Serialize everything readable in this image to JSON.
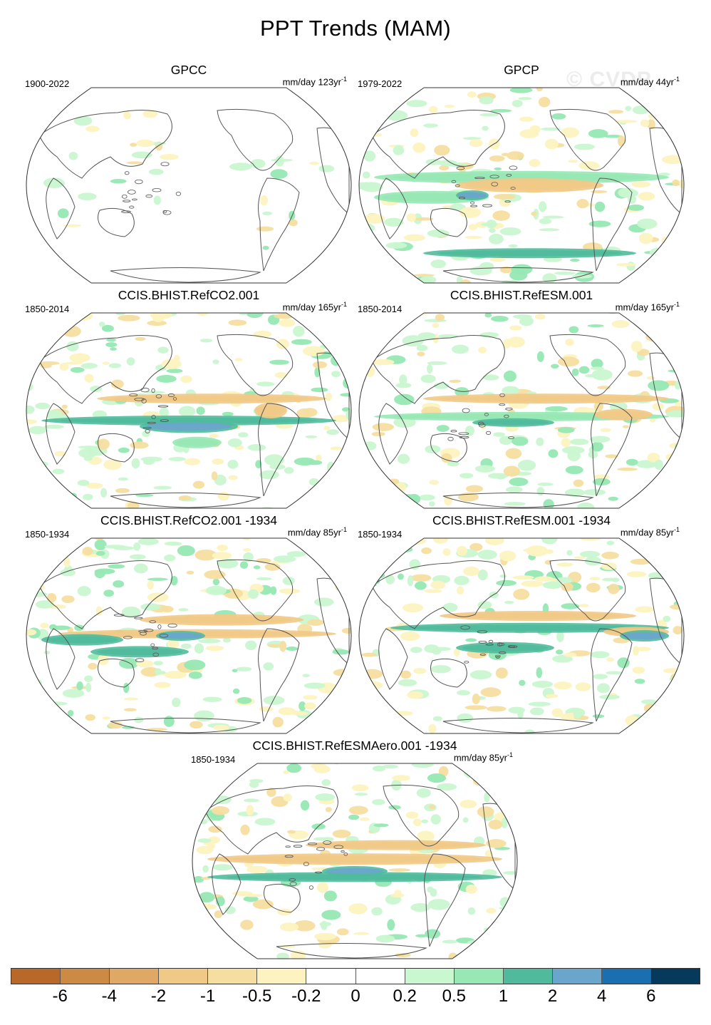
{
  "title": "PPT Trends (MAM)",
  "watermark": "© CVDP",
  "panels": [
    {
      "title": "GPCC",
      "period": "1900-2022",
      "units": "mm/day 123yr",
      "units_exp": "-1"
    },
    {
      "title": "GPCP",
      "period": "1979-2022",
      "units": "mm/day 44yr",
      "units_exp": "-1"
    },
    {
      "title": "CCIS.BHIST.RefCO2.001",
      "period": "1850-2014",
      "units": "mm/day 165yr",
      "units_exp": "-1"
    },
    {
      "title": "CCIS.BHIST.RefESM.001",
      "period": "1850-2014",
      "units": "mm/day 165yr",
      "units_exp": "-1"
    },
    {
      "title": "CCIS.BHIST.RefCO2.001 -1934",
      "period": "1850-1934",
      "units": "mm/day 85yr",
      "units_exp": "-1"
    },
    {
      "title": "CCIS.BHIST.RefESM.001 -1934",
      "period": "1850-1934",
      "units": "mm/day 85yr",
      "units_exp": "-1"
    },
    {
      "title": "CCIS.BHIST.RefESMAero.001 -1934",
      "period": "1850-1934",
      "units": "mm/day 85yr",
      "units_exp": "-1"
    }
  ],
  "colorbar": {
    "colors": [
      "#b8692a",
      "#cd8a45",
      "#e0a865",
      "#f1c987",
      "#f5dea0",
      "#fdf3c0",
      "#ffffff",
      "#ffffff",
      "#c9f7d0",
      "#97e8b4",
      "#50bb9c",
      "#6aa5cc",
      "#1a6fb0",
      "#053a5c"
    ],
    "labels": [
      "-6",
      "-4",
      "-2",
      "-1",
      "-0.5",
      "-0.2",
      "0",
      "0.2",
      "0.5",
      "1",
      "2",
      "4",
      "6"
    ]
  }
}
